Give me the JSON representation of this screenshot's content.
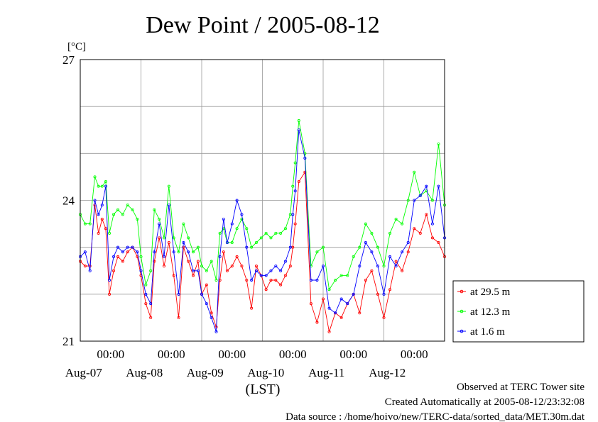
{
  "chart_data": {
    "type": "line",
    "title": "Dew Point / 2005-08-12",
    "ylabel": "[°C]",
    "xlabel": "(LST)",
    "ylim": [
      21,
      27
    ],
    "yticks": [
      "21",
      "24",
      "27"
    ],
    "ygrid_values": [
      21,
      22,
      23,
      24,
      25,
      26,
      27
    ],
    "xlim": [
      0,
      6
    ],
    "x_unit": "days from Aug-06 12:00 LST",
    "xticks": [
      {
        "x": 0.5,
        "time": "00:00",
        "date": "Aug-07"
      },
      {
        "x": 1.5,
        "time": "00:00",
        "date": "Aug-08"
      },
      {
        "x": 2.5,
        "time": "00:00",
        "date": "Aug-09"
      },
      {
        "x": 3.5,
        "time": "00:00",
        "date": "Aug-10"
      },
      {
        "x": 4.5,
        "time": "00:00",
        "date": "Aug-11"
      },
      {
        "x": 5.5,
        "time": "00:00",
        "date": "Aug-12"
      }
    ],
    "xgrid_values": [
      1,
      2,
      3,
      4,
      5
    ],
    "grid": true,
    "legend_position": "right",
    "series": [
      {
        "name": "at 29.5 m",
        "color": "#ff0000",
        "x": [
          0,
          0.08,
          0.16,
          0.24,
          0.3,
          0.36,
          0.42,
          0.48,
          0.55,
          0.62,
          0.7,
          0.78,
          0.86,
          0.94,
          1.0,
          1.08,
          1.16,
          1.22,
          1.3,
          1.38,
          1.46,
          1.54,
          1.62,
          1.7,
          1.78,
          1.86,
          1.94,
          2.0,
          2.08,
          2.16,
          2.24,
          2.3,
          2.36,
          2.42,
          2.5,
          2.58,
          2.66,
          2.74,
          2.82,
          2.9,
          2.98,
          3.06,
          3.14,
          3.22,
          3.3,
          3.38,
          3.46,
          3.5,
          3.54,
          3.6,
          3.7,
          3.8,
          3.9,
          4.0,
          4.1,
          4.2,
          4.3,
          4.4,
          4.5,
          4.6,
          4.7,
          4.8,
          4.9,
          5.0,
          5.1,
          5.2,
          5.3,
          5.4,
          5.5,
          5.6,
          5.7,
          5.8,
          5.9,
          6.0
        ],
        "y": [
          22.7,
          22.6,
          22.6,
          23.9,
          23.3,
          23.6,
          23.4,
          22.0,
          22.5,
          22.8,
          22.7,
          22.9,
          23.0,
          22.8,
          22.4,
          21.8,
          21.5,
          22.7,
          23.2,
          22.6,
          23.1,
          22.4,
          21.5,
          23.0,
          22.7,
          22.4,
          22.7,
          22.0,
          22.2,
          21.6,
          21.3,
          22.3,
          22.9,
          22.5,
          22.6,
          22.8,
          22.6,
          22.3,
          21.7,
          22.6,
          22.4,
          22.1,
          22.3,
          22.3,
          22.2,
          22.4,
          22.6,
          23.0,
          23.5,
          24.4,
          24.6,
          21.8,
          21.4,
          21.9,
          21.2,
          21.6,
          21.5,
          21.8,
          22.0,
          21.6,
          22.3,
          22.5,
          22.0,
          21.5,
          22.1,
          22.7,
          22.5,
          22.9,
          23.4,
          23.3,
          23.7,
          23.2,
          23.1,
          22.8
        ]
      },
      {
        "name": "at 12.3 m",
        "color": "#00ff00",
        "x": [
          0,
          0.08,
          0.16,
          0.24,
          0.3,
          0.36,
          0.42,
          0.48,
          0.55,
          0.62,
          0.7,
          0.78,
          0.86,
          0.94,
          1.0,
          1.08,
          1.16,
          1.22,
          1.3,
          1.38,
          1.46,
          1.54,
          1.62,
          1.7,
          1.78,
          1.86,
          1.94,
          2.0,
          2.08,
          2.16,
          2.24,
          2.3,
          2.36,
          2.42,
          2.5,
          2.58,
          2.66,
          2.74,
          2.82,
          2.9,
          2.98,
          3.06,
          3.14,
          3.22,
          3.3,
          3.38,
          3.46,
          3.5,
          3.54,
          3.6,
          3.7,
          3.8,
          3.9,
          4.0,
          4.1,
          4.2,
          4.3,
          4.4,
          4.5,
          4.6,
          4.7,
          4.8,
          4.9,
          5.0,
          5.1,
          5.2,
          5.3,
          5.4,
          5.5,
          5.6,
          5.7,
          5.8,
          5.9,
          6.0
        ],
        "y": [
          23.7,
          23.5,
          23.5,
          24.5,
          24.3,
          24.3,
          24.4,
          23.3,
          23.7,
          23.8,
          23.7,
          23.9,
          23.8,
          23.6,
          22.8,
          22.2,
          22.5,
          23.8,
          23.6,
          23.2,
          24.3,
          23.2,
          22.9,
          23.5,
          23.2,
          22.9,
          23.0,
          22.6,
          22.5,
          22.7,
          22.3,
          23.3,
          23.4,
          23.1,
          23.1,
          23.4,
          23.6,
          23.4,
          23.0,
          23.1,
          23.2,
          23.3,
          23.2,
          23.3,
          23.3,
          23.4,
          23.7,
          24.3,
          24.8,
          25.7,
          25.0,
          22.6,
          22.9,
          23.0,
          22.1,
          22.3,
          22.4,
          22.4,
          22.8,
          23.0,
          23.5,
          23.3,
          23.0,
          22.6,
          23.3,
          23.6,
          23.5,
          24.0,
          24.6,
          24.1,
          24.2,
          24.0,
          25.2,
          23.9
        ]
      },
      {
        "name": "at 1.6 m",
        "color": "#0000ff",
        "x": [
          0,
          0.08,
          0.16,
          0.24,
          0.3,
          0.36,
          0.42,
          0.48,
          0.55,
          0.62,
          0.7,
          0.78,
          0.86,
          0.94,
          1.0,
          1.08,
          1.16,
          1.22,
          1.3,
          1.38,
          1.46,
          1.54,
          1.62,
          1.7,
          1.78,
          1.86,
          1.94,
          2.0,
          2.08,
          2.16,
          2.24,
          2.3,
          2.36,
          2.42,
          2.5,
          2.58,
          2.66,
          2.74,
          2.82,
          2.9,
          2.98,
          3.06,
          3.14,
          3.22,
          3.3,
          3.38,
          3.46,
          3.5,
          3.54,
          3.6,
          3.7,
          3.8,
          3.9,
          4.0,
          4.1,
          4.2,
          4.3,
          4.4,
          4.5,
          4.6,
          4.7,
          4.8,
          4.9,
          5.0,
          5.1,
          5.2,
          5.3,
          5.4,
          5.5,
          5.6,
          5.7,
          5.8,
          5.9,
          6.0
        ],
        "y": [
          22.8,
          22.9,
          22.5,
          24.0,
          23.7,
          23.9,
          24.3,
          22.3,
          22.8,
          23.0,
          22.9,
          23.0,
          23.0,
          22.9,
          22.5,
          22.0,
          21.8,
          22.9,
          23.5,
          22.8,
          23.9,
          22.9,
          22.0,
          23.1,
          22.9,
          22.5,
          22.5,
          22.0,
          21.8,
          21.5,
          21.2,
          22.8,
          23.6,
          23.1,
          23.5,
          24.0,
          23.7,
          23.0,
          22.3,
          22.5,
          22.4,
          22.4,
          22.5,
          22.6,
          22.5,
          22.7,
          23.0,
          23.7,
          24.2,
          25.5,
          24.9,
          22.3,
          22.3,
          22.6,
          21.7,
          21.6,
          21.9,
          21.8,
          22.0,
          22.6,
          23.1,
          22.9,
          22.6,
          22.0,
          22.8,
          22.6,
          22.9,
          23.1,
          24.0,
          24.1,
          24.3,
          23.5,
          24.3,
          23.2
        ]
      }
    ]
  },
  "footer": {
    "line1": "Observed at TERC Tower site",
    "line2": "Created Automatically at 2005-08-12/23:32:08",
    "line3": "Data source : /home/hoivo/new/TERC-data/sorted_data/MET.30m.dat"
  }
}
